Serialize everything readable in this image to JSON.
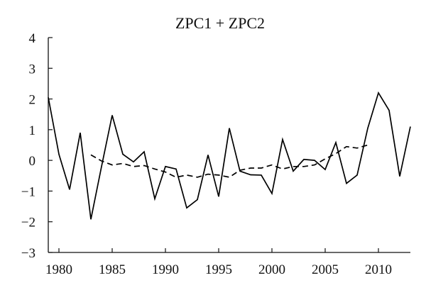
{
  "chart_data": {
    "type": "line",
    "title": "ZPC1 + ZPC2",
    "xlabel": "",
    "ylabel": "",
    "xlim": [
      1979,
      2013
    ],
    "ylim": [
      -3,
      4
    ],
    "xticks": [
      1980,
      1985,
      1990,
      1995,
      2000,
      2005,
      2010
    ],
    "yticks": [
      -3,
      -2,
      -1,
      0,
      1,
      2,
      3,
      4
    ],
    "ytick_labels": [
      "−3",
      "−2",
      "−1",
      "0",
      "1",
      "2",
      "3",
      "4"
    ],
    "grid": false,
    "legend": "none",
    "series": [
      {
        "style": "solid",
        "x": [
          1979,
          1980,
          1981,
          1982,
          1983,
          1984,
          1985,
          1986,
          1987,
          1988,
          1989,
          1990,
          1991,
          1992,
          1993,
          1994,
          1995,
          1996,
          1997,
          1998,
          1999,
          2000,
          2001,
          2002,
          2003,
          2004,
          2005,
          2006,
          2007,
          2008,
          2009,
          2010,
          2011,
          2012,
          2013
        ],
        "y": [
          2.05,
          0.2,
          -0.95,
          0.9,
          -1.92,
          -0.2,
          1.47,
          0.2,
          -0.05,
          0.28,
          -1.25,
          -0.2,
          -0.28,
          -1.55,
          -1.28,
          0.18,
          -1.18,
          1.05,
          -0.35,
          -0.47,
          -0.48,
          -1.08,
          0.68,
          -0.35,
          0.03,
          0.0,
          -0.3,
          0.58,
          -0.75,
          -0.48,
          1.05,
          2.2,
          1.63,
          -0.52,
          1.1
        ]
      },
      {
        "style": "dashed",
        "x": [
          1983,
          1984,
          1985,
          1986,
          1987,
          1988,
          1989,
          1990,
          1991,
          1992,
          1993,
          1994,
          1995,
          1996,
          1997,
          1998,
          1999,
          2000,
          2001,
          2002,
          2003,
          2004,
          2005,
          2006,
          2007,
          2008,
          2009
        ],
        "y": [
          0.18,
          -0.02,
          -0.15,
          -0.1,
          -0.2,
          -0.17,
          -0.28,
          -0.38,
          -0.55,
          -0.48,
          -0.55,
          -0.45,
          -0.48,
          -0.55,
          -0.32,
          -0.25,
          -0.25,
          -0.15,
          -0.28,
          -0.2,
          -0.2,
          -0.15,
          0.05,
          0.22,
          0.45,
          0.4,
          0.5
        ]
      }
    ]
  }
}
